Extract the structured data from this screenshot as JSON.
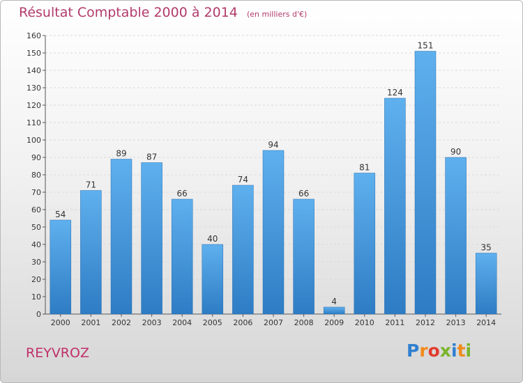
{
  "chart_data": {
    "type": "bar",
    "title": "Résultat Comptable 2000 à 2014",
    "subtitle": "(en milliers d'€)",
    "categories": [
      "2000",
      "2001",
      "2002",
      "2003",
      "2004",
      "2005",
      "2006",
      "2007",
      "2008",
      "2009",
      "2010",
      "2011",
      "2012",
      "2013",
      "2014"
    ],
    "values": [
      54,
      71,
      89,
      87,
      66,
      40,
      74,
      94,
      66,
      4,
      81,
      124,
      151,
      90,
      35
    ],
    "ylim": [
      0,
      160
    ],
    "yticks": [
      0,
      10,
      20,
      30,
      40,
      50,
      60,
      70,
      80,
      90,
      100,
      110,
      120,
      130,
      140,
      150,
      160
    ],
    "grid": true,
    "bar_color": "#3d8fd6"
  },
  "commune": "REYVROZ",
  "logo": {
    "letters": [
      "P",
      "r",
      "o",
      "x",
      "i",
      "t",
      "i"
    ],
    "colors": [
      "#2f7fd0",
      "#f08a1c",
      "#e23b2e",
      "#7ab42a",
      "#2f7fd0",
      "#f08a1c",
      "#7ab42a"
    ]
  }
}
